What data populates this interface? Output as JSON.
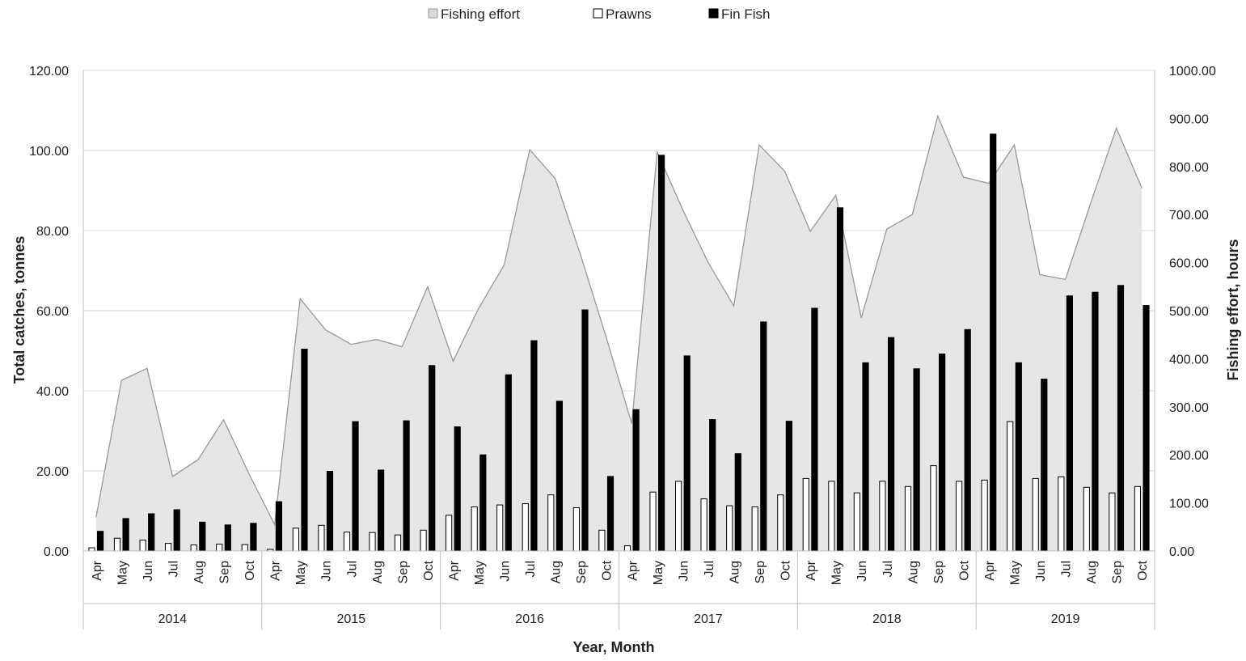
{
  "chart_data": {
    "type": "bar",
    "xlabel": "Year, Month",
    "ylabel": "Total catches, tonnes",
    "y2label": "Fishing effort, hours",
    "ylim": [
      0,
      120
    ],
    "y2lim": [
      0,
      1000
    ],
    "yticks": [
      "0.00",
      "20.00",
      "40.00",
      "60.00",
      "80.00",
      "100.00",
      "120.00"
    ],
    "y2ticks": [
      "0.00",
      "100.00",
      "200.00",
      "300.00",
      "400.00",
      "500.00",
      "600.00",
      "700.00",
      "800.00",
      "900.00",
      "1000.00"
    ],
    "grid": true,
    "legend_position": "top-center",
    "years": [
      "2014",
      "2015",
      "2016",
      "2017",
      "2018",
      "2019"
    ],
    "months": [
      "Apr",
      "May",
      "Jun",
      "Jul",
      "Aug",
      "Sep",
      "Oct"
    ],
    "series": [
      {
        "name": "Fishing effort",
        "type": "area",
        "axis": "right",
        "color": "#e6e6e6",
        "stroke": "#999999",
        "values": [
          70,
          355,
          380,
          155,
          190,
          273,
          160,
          55,
          525,
          460,
          430,
          440,
          425,
          550,
          395,
          505,
          595,
          835,
          775,
          615,
          445,
          265,
          830,
          710,
          600,
          510,
          845,
          790,
          665,
          740,
          485,
          670,
          700,
          905,
          778,
          765,
          845,
          575,
          565,
          725,
          880,
          755
        ]
      },
      {
        "name": "Prawns",
        "type": "bar",
        "axis": "left",
        "color": "#ffffff",
        "stroke": "#000000",
        "values": [
          0.8,
          3.2,
          2.7,
          1.9,
          1.5,
          1.7,
          1.6,
          0.4,
          5.7,
          6.4,
          4.7,
          4.6,
          4.0,
          5.2,
          8.9,
          11.0,
          11.5,
          11.8,
          14.0,
          10.8,
          5.2,
          1.3,
          14.7,
          17.4,
          13.0,
          11.3,
          11.0,
          14.0,
          18.1,
          17.4,
          14.5,
          17.4,
          16.1,
          21.3,
          17.4,
          17.7,
          32.3,
          18.1,
          18.5,
          15.9,
          14.5,
          16.1
        ]
      },
      {
        "name": "Fin Fish",
        "type": "bar",
        "axis": "left",
        "color": "#000000",
        "stroke": "#000000",
        "values": [
          4.9,
          8.1,
          9.3,
          10.3,
          7.2,
          6.5,
          6.9,
          12.3,
          50.4,
          19.9,
          32.3,
          20.2,
          32.5,
          46.3,
          31.0,
          24.0,
          44.0,
          52.5,
          37.4,
          60.2,
          18.6,
          35.3,
          98.8,
          48.7,
          32.8,
          24.3,
          57.2,
          32.4,
          60.6,
          85.7,
          47.0,
          53.3,
          45.5,
          49.2,
          55.3,
          104.1,
          47.0,
          42.9,
          63.7,
          64.6,
          66.3,
          61.3
        ]
      }
    ]
  }
}
